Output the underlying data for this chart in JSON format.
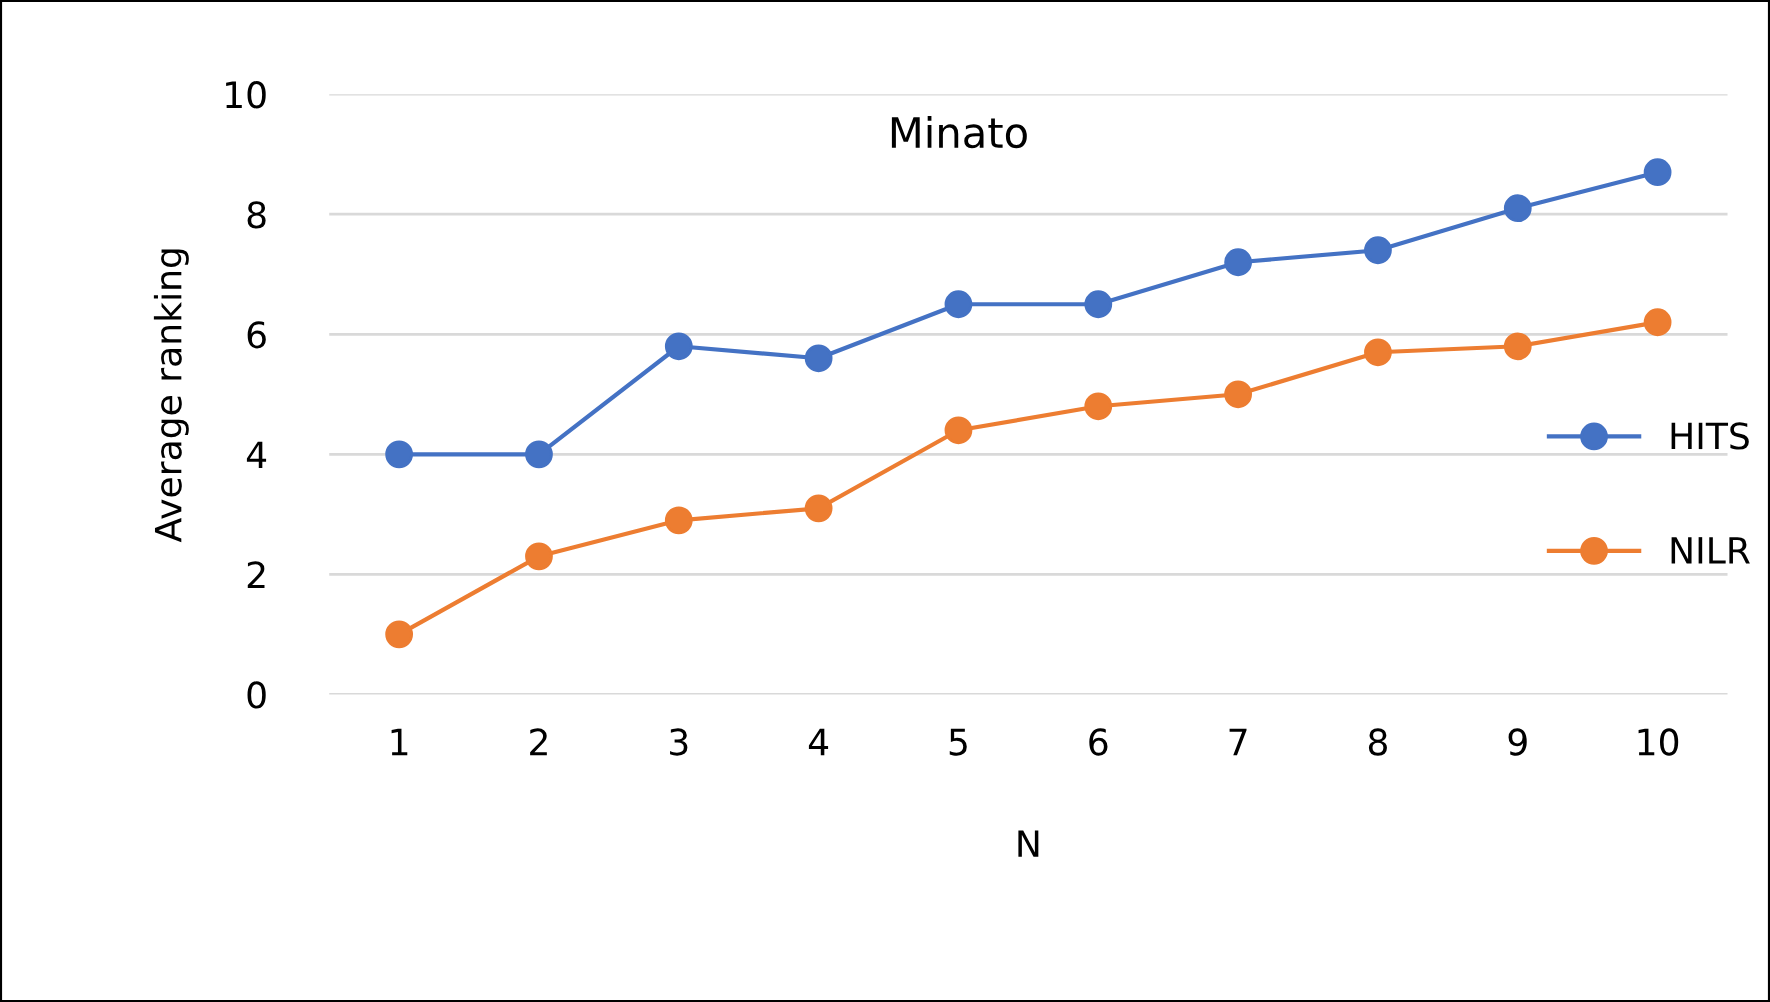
{
  "chart_data": {
    "type": "line",
    "title": "Minato",
    "xlabel": "N",
    "ylabel": "Average ranking",
    "categories": [
      "1",
      "2",
      "3",
      "4",
      "5",
      "6",
      "7",
      "8",
      "9",
      "10"
    ],
    "series": [
      {
        "name": "HITS",
        "color": "#4472c4",
        "values": [
          4.0,
          4.0,
          5.8,
          5.6,
          6.5,
          6.5,
          7.2,
          7.4,
          8.1,
          8.7
        ]
      },
      {
        "name": "NILR",
        "color": "#ed7d31",
        "values": [
          1.0,
          2.3,
          2.9,
          3.1,
          4.4,
          4.8,
          5.0,
          5.7,
          5.8,
          6.2
        ]
      }
    ],
    "ylim": [
      0,
      10
    ],
    "yticks": [
      0,
      2,
      4,
      6,
      8,
      10
    ],
    "grid": "y",
    "legend": "right",
    "marker": "circle",
    "line_style": "solid"
  }
}
